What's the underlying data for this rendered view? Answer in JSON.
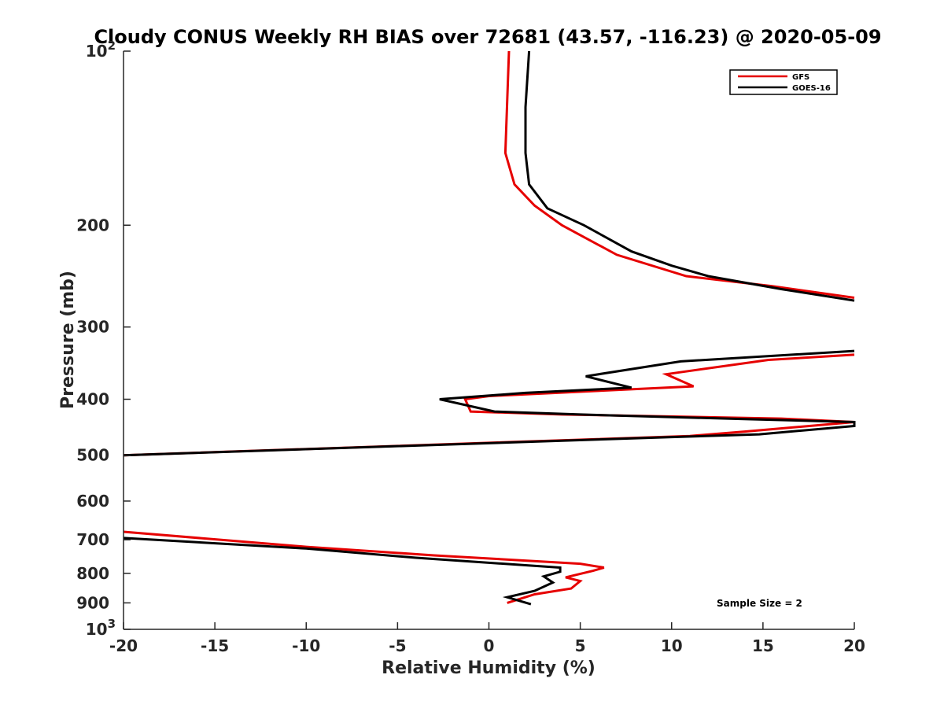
{
  "chart_data": {
    "type": "line",
    "title": "Cloudy CONUS Weekly RH BIAS over 72681 (43.57, -116.23) @ 2020-05-09",
    "xlabel": "Relative Humidity (%)",
    "ylabel": "Pressure (mb)",
    "xlim": [
      -20,
      20
    ],
    "ylim": [
      100,
      1000
    ],
    "yscale": "log",
    "y_reversed": true,
    "x_ticks": [
      "-20",
      "-15",
      "-10",
      "-5",
      "0",
      "5",
      "10",
      "15",
      "20"
    ],
    "y_ticks": [
      {
        "value": 100,
        "label": "10",
        "sup": "2"
      },
      {
        "value": 200,
        "label": "200"
      },
      {
        "value": 300,
        "label": "300"
      },
      {
        "value": 400,
        "label": "400"
      },
      {
        "value": 500,
        "label": "500"
      },
      {
        "value": 600,
        "label": "600"
      },
      {
        "value": 700,
        "label": "700"
      },
      {
        "value": 800,
        "label": "800"
      },
      {
        "value": 900,
        "label": "900"
      },
      {
        "value": 1000,
        "label": "10",
        "sup": "3"
      }
    ],
    "grid": false,
    "legend_position": "top-right",
    "annotation": "Sample Size = 2",
    "series": [
      {
        "name": "GFS",
        "color": "#e60000",
        "segments": [
          [
            [
              1.1,
              100
            ],
            [
              0.9,
              150
            ],
            [
              1.4,
              170
            ],
            [
              2.5,
              185
            ],
            [
              4.0,
              200
            ],
            [
              7.0,
              225
            ],
            [
              10.8,
              245
            ],
            [
              15.5,
              255
            ],
            [
              20.0,
              267
            ]
          ],
          [
            [
              20.0,
              335
            ],
            [
              15.3,
              342
            ],
            [
              9.7,
              362
            ],
            [
              11.2,
              380
            ],
            [
              0.0,
              395
            ],
            [
              -1.3,
              400
            ],
            [
              -1.0,
              420
            ],
            [
              4.0,
              425
            ],
            [
              16.0,
              432
            ],
            [
              20.0,
              438
            ],
            [
              14.0,
              455
            ],
            [
              11.0,
              463
            ],
            [
              -20.0,
              500
            ]
          ],
          [
            [
              -20.0,
              678
            ],
            [
              -10.0,
              720
            ],
            [
              -3.0,
              745
            ],
            [
              5.0,
              770
            ],
            [
              6.3,
              782
            ],
            [
              5.7,
              792
            ],
            [
              4.2,
              813
            ],
            [
              5.0,
              825
            ],
            [
              4.5,
              850
            ],
            [
              2.5,
              870
            ],
            [
              1.0,
              900
            ]
          ]
        ]
      },
      {
        "name": "GOES-16",
        "color": "#000000",
        "segments": [
          [
            [
              2.2,
              100
            ],
            [
              2.0,
              125
            ],
            [
              2.0,
              150
            ],
            [
              2.2,
              170
            ],
            [
              3.2,
              187
            ],
            [
              5.2,
              200
            ],
            [
              7.8,
              222
            ],
            [
              10.0,
              235
            ],
            [
              12.0,
              245
            ],
            [
              16.0,
              258
            ],
            [
              20.0,
              270
            ]
          ],
          [
            [
              20.0,
              330
            ],
            [
              10.5,
              344
            ],
            [
              5.3,
              365
            ],
            [
              7.8,
              382
            ],
            [
              2.0,
              390
            ],
            [
              -2.7,
              400
            ],
            [
              0.3,
              420
            ],
            [
              5.0,
              425
            ],
            [
              14.0,
              433
            ],
            [
              20.0,
              438
            ],
            [
              20.0,
              445
            ],
            [
              14.8,
              460
            ],
            [
              10.0,
              465
            ],
            [
              -20.0,
              500
            ]
          ],
          [
            [
              -20.0,
              695
            ],
            [
              -10.0,
              725
            ],
            [
              -4.0,
              752
            ],
            [
              3.9,
              782
            ],
            [
              3.9,
              795
            ],
            [
              3.0,
              810
            ],
            [
              3.5,
              830
            ],
            [
              2.5,
              858
            ],
            [
              1.0,
              880
            ],
            [
              2.3,
              905
            ]
          ]
        ]
      }
    ]
  }
}
